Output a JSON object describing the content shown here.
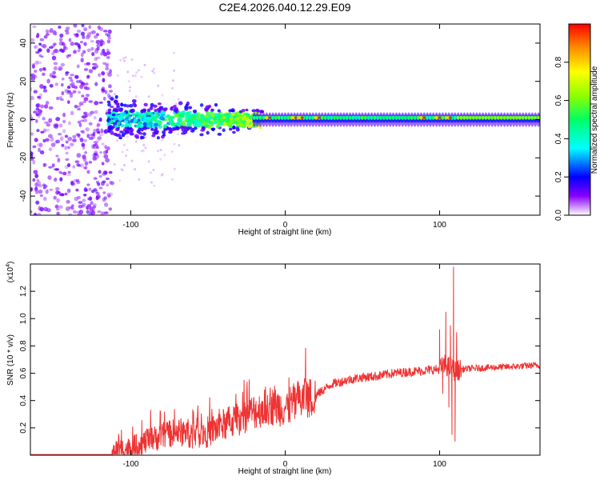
{
  "title": "C2E4.2026.040.12.29.E09",
  "chart_data": [
    {
      "type": "heatmap",
      "name": "spectrogram",
      "xlabel": "Height of straight line (km)",
      "ylabel": "Frequency (Hz)",
      "xlim": [
        -165,
        165
      ],
      "ylim": [
        -50,
        50
      ],
      "xticks": [
        -100,
        0,
        100
      ],
      "yticks": [
        -40,
        -20,
        0,
        20,
        40
      ],
      "colorbar": {
        "label": "Normalized spectral amplitude",
        "range": [
          0,
          1
        ],
        "ticks": [
          "0.0",
          "0.2",
          "0.4",
          "0.6",
          "0.8"
        ],
        "tick_values": [
          0.0,
          0.2,
          0.4,
          0.6,
          0.8
        ],
        "stops": [
          {
            "v": 0.0,
            "color": "#ffffff"
          },
          {
            "v": 0.1,
            "color": "#8800ff"
          },
          {
            "v": 0.2,
            "color": "#0000ff"
          },
          {
            "v": 0.35,
            "color": "#00ffff"
          },
          {
            "v": 0.5,
            "color": "#00ff66"
          },
          {
            "v": 0.62,
            "color": "#88ff00"
          },
          {
            "v": 0.75,
            "color": "#ffff00"
          },
          {
            "v": 0.88,
            "color": "#ff8800"
          },
          {
            "v": 1.0,
            "color": "#ff0000"
          }
        ]
      },
      "line_frequency_hz": 1,
      "hot_spots_km": [
        -12,
        5,
        9,
        20,
        88,
        98,
        105
      ]
    },
    {
      "type": "line",
      "name": "snr",
      "xlabel": "Height of straight line (km)",
      "ylabel": "SNR (10 * v/v)",
      "exponent_label": "(x10",
      "exponent_power": "4",
      "xlim": [
        -165,
        165
      ],
      "ylim": [
        0,
        1.4
      ],
      "xticks": [
        -100,
        0,
        100
      ],
      "yticks": [
        0.2,
        0.4,
        0.6,
        0.8,
        1.0,
        1.2
      ],
      "ytick_labels": [
        "0.2",
        "0.4",
        "0.6",
        "0.8",
        "1.0",
        "1.2"
      ],
      "color": "#ee3333",
      "anchors": [
        [
          -165,
          0.0
        ],
        [
          -112,
          0.0
        ],
        [
          -110,
          0.04
        ],
        [
          -100,
          0.05
        ],
        [
          -90,
          0.1
        ],
        [
          -80,
          0.14
        ],
        [
          -70,
          0.17
        ],
        [
          -60,
          0.16
        ],
        [
          -50,
          0.17
        ],
        [
          -40,
          0.22
        ],
        [
          -30,
          0.27
        ],
        [
          -20,
          0.32
        ],
        [
          -10,
          0.36
        ],
        [
          0,
          0.35
        ],
        [
          10,
          0.4
        ],
        [
          20,
          0.44
        ],
        [
          30,
          0.52
        ],
        [
          40,
          0.55
        ],
        [
          50,
          0.57
        ],
        [
          60,
          0.58
        ],
        [
          70,
          0.6
        ],
        [
          80,
          0.61
        ],
        [
          90,
          0.62
        ],
        [
          100,
          0.63
        ],
        [
          104,
          0.66
        ],
        [
          110,
          0.62
        ],
        [
          115,
          0.63
        ],
        [
          130,
          0.64
        ],
        [
          150,
          0.65
        ],
        [
          165,
          0.66
        ]
      ],
      "spikes": [
        [
          100,
          0.92
        ],
        [
          102,
          0.45
        ],
        [
          104,
          1.05
        ],
        [
          106,
          0.35
        ],
        [
          107,
          0.95
        ],
        [
          108,
          0.15
        ],
        [
          109,
          1.38
        ],
        [
          110,
          0.1
        ],
        [
          111,
          0.9
        ],
        [
          112,
          0.55
        ]
      ]
    }
  ]
}
